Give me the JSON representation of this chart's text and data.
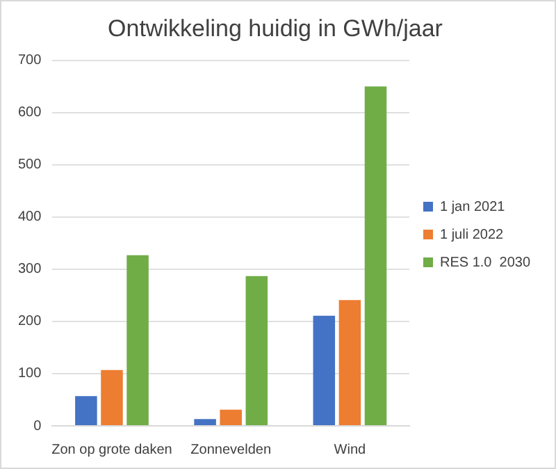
{
  "chart_data": {
    "type": "bar",
    "title": "Ontwikkeling huidig in GWh/jaar",
    "categories": [
      "Zon op grote daken",
      "Zonnevelden",
      "Wind"
    ],
    "series": [
      {
        "name": "1 jan 2021",
        "color": "#4472c4",
        "values": [
          57,
          13,
          211
        ]
      },
      {
        "name": "1 juli 2022",
        "color": "#ed7d31",
        "values": [
          107,
          31,
          241
        ]
      },
      {
        "name": "RES 1.0  2030",
        "color": "#70ad47",
        "values": [
          327,
          287,
          650
        ]
      }
    ],
    "ylim": [
      0,
      700
    ],
    "yticks": [
      0,
      100,
      200,
      300,
      400,
      500,
      600,
      700
    ],
    "grid": "y",
    "legend": "right"
  }
}
